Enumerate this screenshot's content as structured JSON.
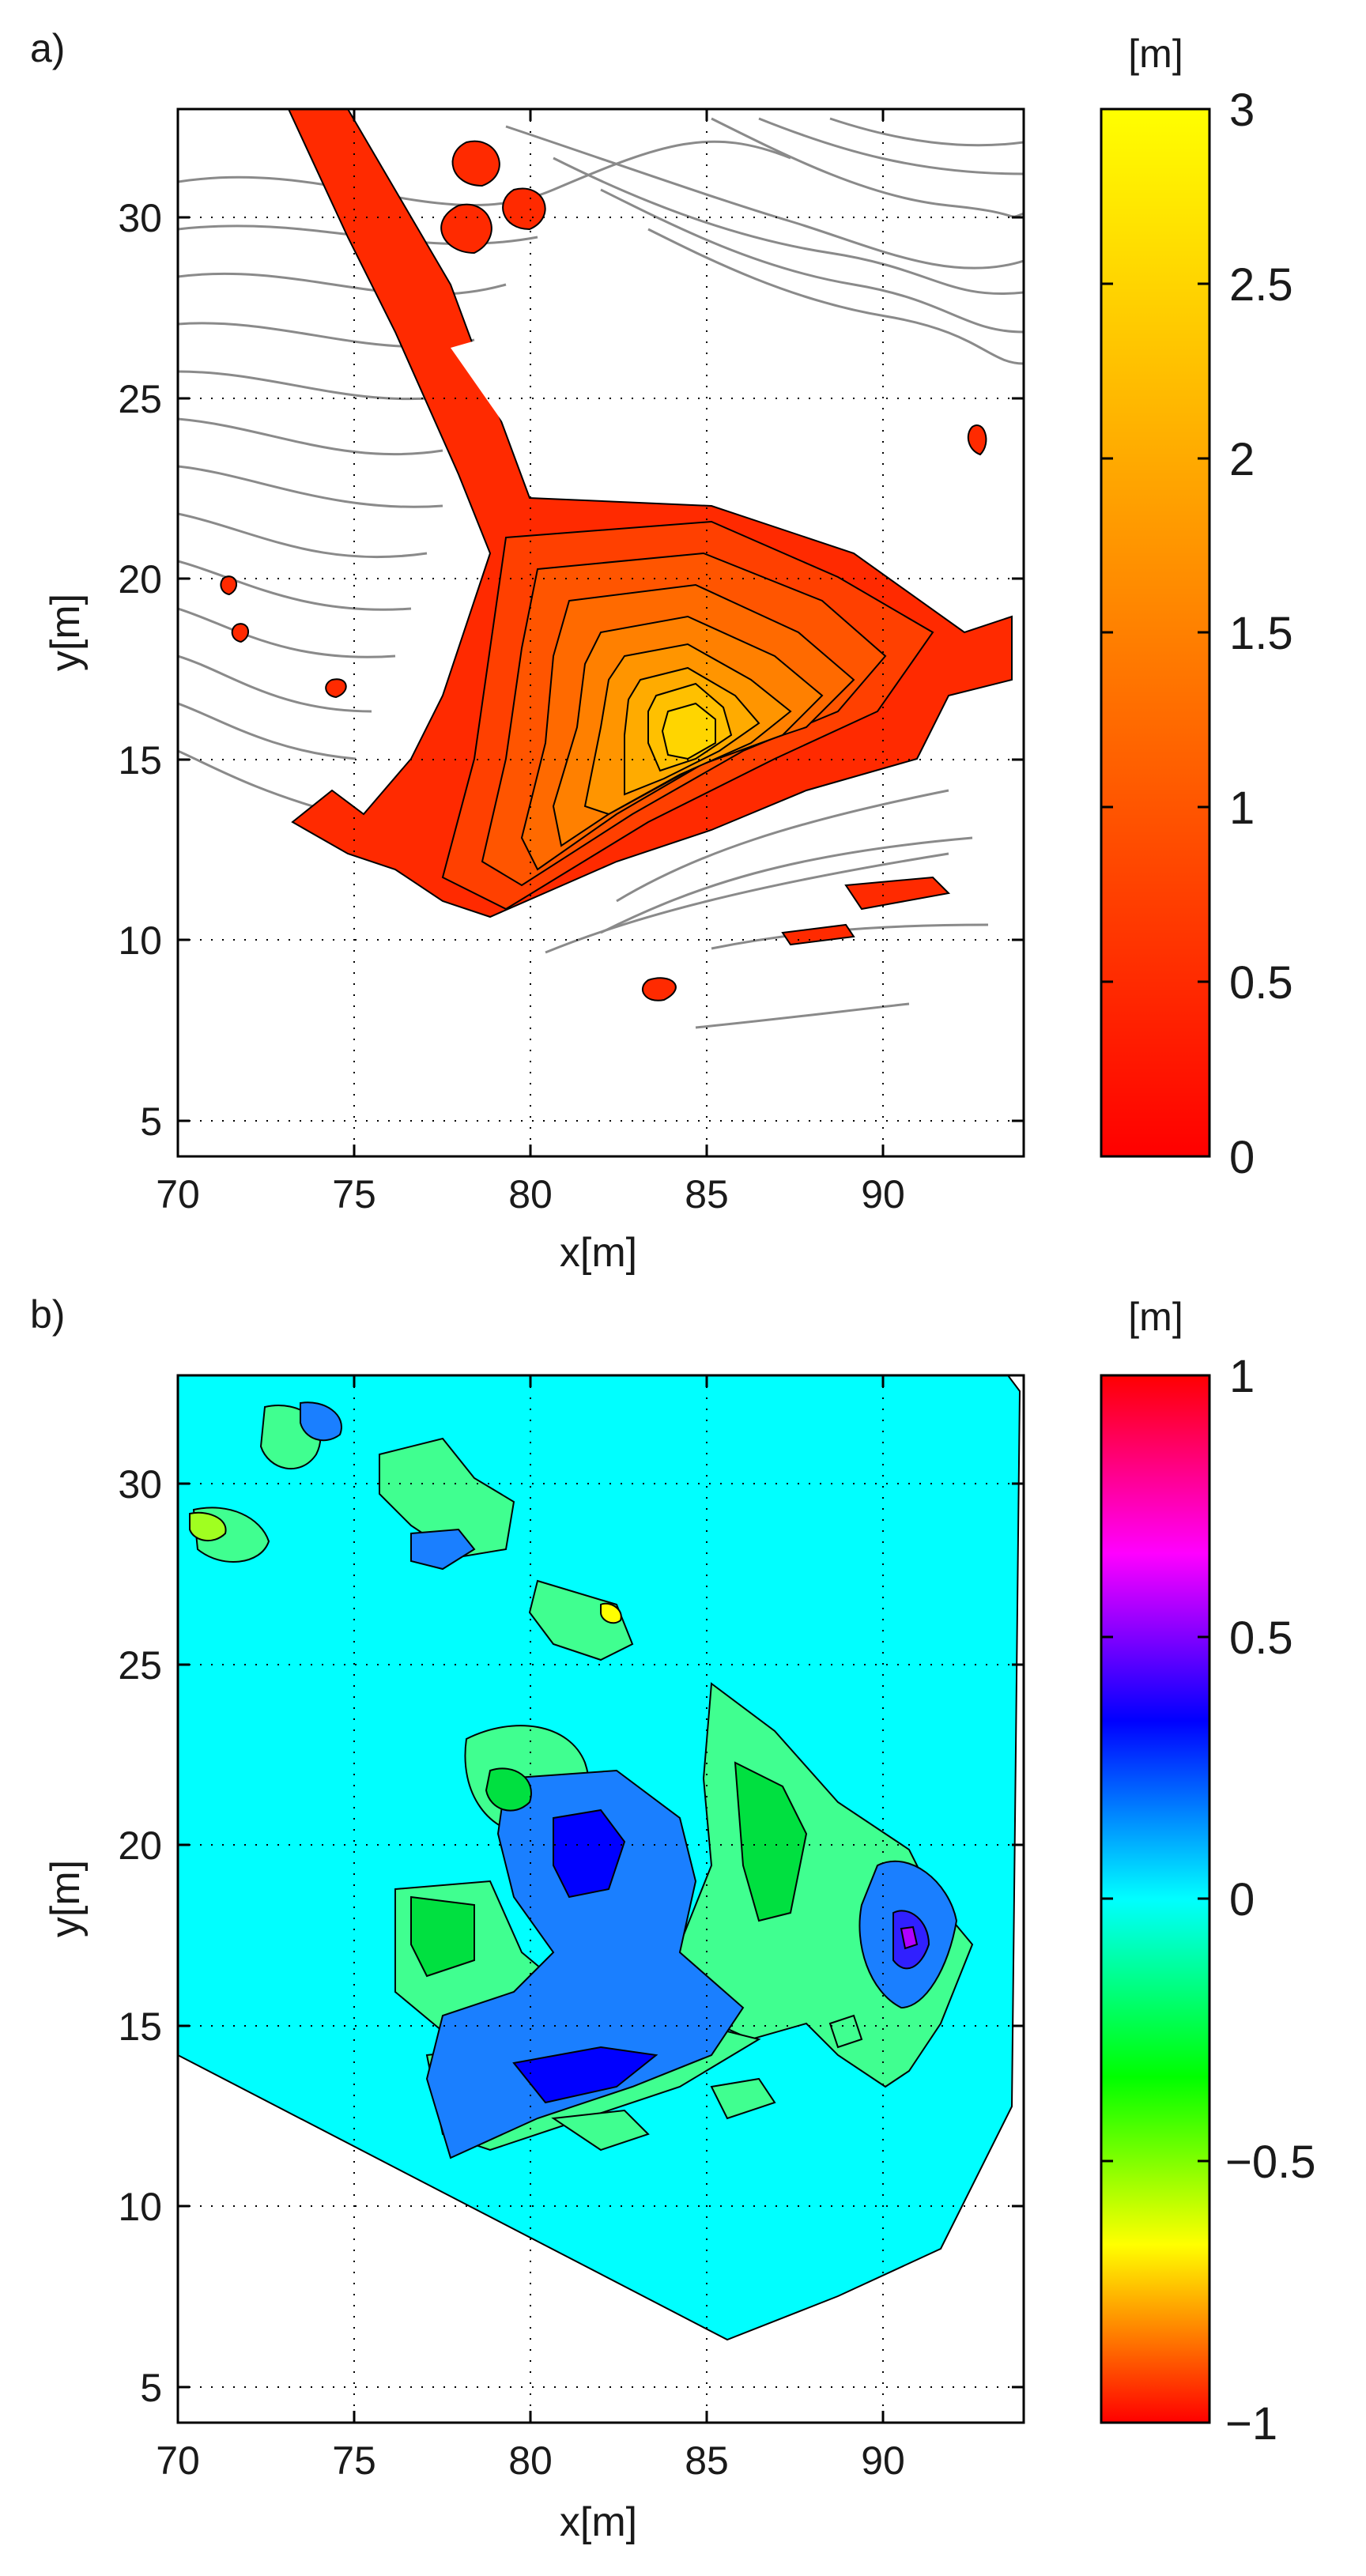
{
  "chart_data": [
    {
      "type": "contour",
      "panel_label": "a)",
      "xlabel": "x[m]",
      "ylabel": "y[m]",
      "xlim": [
        70,
        94
      ],
      "ylim": [
        4,
        33
      ],
      "x_ticks": [
        70,
        75,
        80,
        85,
        90
      ],
      "y_ticks": [
        5,
        10,
        15,
        20,
        25,
        30
      ],
      "grid": "dotted",
      "colorbar": {
        "unit": "[m]",
        "range": [
          0,
          3
        ],
        "ticks": [
          0,
          0.5,
          1,
          1.5,
          2,
          2.5,
          3
        ],
        "tick_labels": [
          "0",
          "0.5",
          "1",
          "1.5",
          "2",
          "2.5",
          "3"
        ],
        "colors": [
          "#ff0000",
          "#ff8000",
          "#ffff00"
        ]
      },
      "peak": {
        "x": 84.2,
        "y": 15.8,
        "value": 2.4
      }
    },
    {
      "type": "contour",
      "panel_label": "b)",
      "xlabel": "x[m]",
      "ylabel": "y[m]",
      "xlim": [
        70,
        94
      ],
      "ylim": [
        4,
        33
      ],
      "x_ticks": [
        70,
        75,
        80,
        85,
        90
      ],
      "y_ticks": [
        5,
        10,
        15,
        20,
        25,
        30
      ],
      "grid": "dotted",
      "colorbar": {
        "unit": "[m]",
        "range": [
          -1,
          1
        ],
        "ticks": [
          -1,
          -0.5,
          0,
          0.5,
          1
        ],
        "tick_labels": [
          "−1",
          "−0.5",
          "0",
          "0.5",
          "1"
        ],
        "colors": [
          "#ff0000",
          "#ffff00",
          "#00ff00",
          "#00ffff",
          "#0000ff",
          "#ff00ff",
          "#ff0000"
        ]
      },
      "background_value": 0
    }
  ]
}
